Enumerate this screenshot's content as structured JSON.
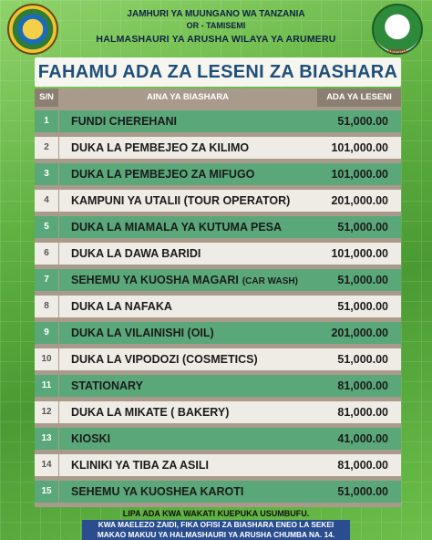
{
  "header": {
    "line1": "JAMHURI YA MUUNGANO WA TANZANIA",
    "line2": "OR - TAMISEMI",
    "line3": "HALMASHAURI YA ARUSHA WILAYA YA ARUMERU",
    "right_emblem_text": "ARUSHA"
  },
  "title": "FAHAMU ADA ZA LESENI ZA BIASHARA",
  "table": {
    "headers": {
      "sn": "S/N",
      "aina": "AINA YA BIASHARA",
      "ada": "ADA YA LESENI (Tsh.)"
    },
    "rows": [
      {
        "sn": "1",
        "name": "FUNDI CHEREHANI",
        "sub": "",
        "fee": "51,000.00"
      },
      {
        "sn": "2",
        "name": "DUKA LA PEMBEJEO ZA KILIMO",
        "sub": "",
        "fee": "101,000.00"
      },
      {
        "sn": "3",
        "name": "DUKA LA PEMBEJEO ZA MIFUGO",
        "sub": "",
        "fee": "101,000.00"
      },
      {
        "sn": "4",
        "name": "KAMPUNI YA UTALII (TOUR OPERATOR)",
        "sub": "",
        "fee": "201,000.00"
      },
      {
        "sn": "5",
        "name": "DUKA LA MIAMALA YA KUTUMA PESA",
        "sub": "",
        "fee": "51,000.00"
      },
      {
        "sn": "6",
        "name": "DUKA LA DAWA BARIDI",
        "sub": "",
        "fee": "101,000.00"
      },
      {
        "sn": "7",
        "name": "SEHEMU YA KUOSHA MAGARI",
        "sub": "(CAR WASH)",
        "fee": "51,000.00"
      },
      {
        "sn": "8",
        "name": "DUKA LA NAFAKA",
        "sub": "",
        "fee": "51,000.00"
      },
      {
        "sn": "9",
        "name": "DUKA LA VILAINISHI (OIL)",
        "sub": "",
        "fee": "201,000.00"
      },
      {
        "sn": "10",
        "name": "DUKA LA VIPODOZI (COSMETICS)",
        "sub": "",
        "fee": "51,000.00"
      },
      {
        "sn": "11",
        "name": "STATIONARY",
        "sub": "",
        "fee": "81,000.00"
      },
      {
        "sn": "12",
        "name": "DUKA LA MIKATE ( BAKERY)",
        "sub": "",
        "fee": "81,000.00"
      },
      {
        "sn": "13",
        "name": "KIOSKI",
        "sub": "",
        "fee": "41,000.00"
      },
      {
        "sn": "14",
        "name": "KLINIKI YA TIBA ZA ASILI",
        "sub": "",
        "fee": "81,000.00"
      },
      {
        "sn": "15",
        "name": "SEHEMU YA KUOSHEA KAROTI",
        "sub": "",
        "fee": "51,000.00"
      }
    ]
  },
  "footer": {
    "line1": "LIPA ADA KWA WAKATI KUEPUKA USUMBUFU.",
    "line2": "KWA MAELEZO ZAIDI, FIKA OFISI ZA BIASHARA ENEO LA SEKEI",
    "line3": "MAKAO MAKUU YA HALMASHAURI YA ARUSHA CHUMBA NA. 14."
  }
}
